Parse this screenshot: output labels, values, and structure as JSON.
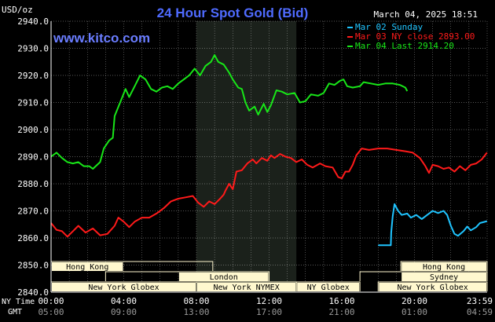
{
  "title": "24 Hour Spot Gold (Bid)",
  "datetime": "March 04, 2025 18:51",
  "unit": "USD/oz",
  "source": "www.kitco.com",
  "time_row_labels": {
    "ny": "NY Time",
    "gmt": "GMT"
  },
  "colors": {
    "background": "#000000",
    "title": "#4f6bff",
    "source": "#6a7dff",
    "axis_text": "#ffffff",
    "grid": "#d9d9d9",
    "session_shade": "#1b211b",
    "series_sunday": "#1fc4ff",
    "series_close": "#ff1a1a",
    "series_last": "#18e618",
    "market_fill": "#fff8cf",
    "market_text": "#000000"
  },
  "chart_data": {
    "type": "line",
    "title": "24 Hour Spot Gold (Bid)",
    "xlabel": "",
    "ylabel": "USD/oz",
    "ylim": [
      2840,
      2940
    ],
    "yticks": [
      "2840.0",
      "2850.0",
      "2860.0",
      "2870.0",
      "2880.0",
      "2890.0",
      "2900.0",
      "2910.0",
      "2920.0",
      "2930.0",
      "2940.0"
    ],
    "xlim_hours": [
      0,
      24
    ],
    "xticks": [
      {
        "ny": "00:00",
        "gmt": "05:00"
      },
      {
        "ny": "04:00",
        "gmt": "09:00"
      },
      {
        "ny": "08:00",
        "gmt": "13:00"
      },
      {
        "ny": "12:00",
        "gmt": "17:00"
      },
      {
        "ny": "16:00",
        "gmt": "21:00"
      },
      {
        "ny": "20:00",
        "gmt": "01:00"
      },
      {
        "ny": "23:59",
        "gmt": "04:59"
      }
    ],
    "grid": true,
    "legend_position": "top-right",
    "shaded_session_hours": [
      8.0,
      13.5
    ],
    "series": [
      {
        "name": "Mar 02 Sunday",
        "color": "#1fc4ff",
        "points": [
          [
            18.0,
            2857.3
          ],
          [
            18.7,
            2857.3
          ],
          [
            18.72,
            2862.0
          ],
          [
            18.8,
            2868.0
          ],
          [
            18.9,
            2872.5
          ],
          [
            19.1,
            2870.0
          ],
          [
            19.3,
            2868.5
          ],
          [
            19.6,
            2869.0
          ],
          [
            19.8,
            2867.5
          ],
          [
            20.1,
            2868.5
          ],
          [
            20.4,
            2867.0
          ],
          [
            20.7,
            2868.5
          ],
          [
            21.0,
            2870.0
          ],
          [
            21.3,
            2869.2
          ],
          [
            21.6,
            2870.0
          ],
          [
            21.8,
            2868.5
          ],
          [
            22.0,
            2864.5
          ],
          [
            22.2,
            2861.5
          ],
          [
            22.4,
            2860.8
          ],
          [
            22.7,
            2862.5
          ],
          [
            22.9,
            2864.2
          ],
          [
            23.1,
            2862.8
          ],
          [
            23.4,
            2864.0
          ],
          [
            23.6,
            2865.5
          ],
          [
            23.99,
            2866.2
          ]
        ]
      },
      {
        "name": "Mar 03 NY close 2893.00",
        "color": "#ff1a1a",
        "points": [
          [
            0.0,
            2865.5
          ],
          [
            0.3,
            2863.0
          ],
          [
            0.6,
            2862.5
          ],
          [
            0.9,
            2860.5
          ],
          [
            1.2,
            2862.5
          ],
          [
            1.5,
            2864.5
          ],
          [
            1.9,
            2862.0
          ],
          [
            2.3,
            2863.5
          ],
          [
            2.7,
            2861.0
          ],
          [
            3.1,
            2861.5
          ],
          [
            3.5,
            2864.5
          ],
          [
            3.7,
            2867.5
          ],
          [
            4.0,
            2866.0
          ],
          [
            4.3,
            2864.0
          ],
          [
            4.6,
            2866.0
          ],
          [
            5.0,
            2867.5
          ],
          [
            5.4,
            2867.5
          ],
          [
            5.8,
            2869.0
          ],
          [
            6.2,
            2871.0
          ],
          [
            6.6,
            2873.5
          ],
          [
            7.0,
            2874.5
          ],
          [
            7.4,
            2875.0
          ],
          [
            7.8,
            2875.5
          ],
          [
            8.1,
            2873.0
          ],
          [
            8.4,
            2871.5
          ],
          [
            8.7,
            2873.5
          ],
          [
            9.0,
            2872.5
          ],
          [
            9.3,
            2874.5
          ],
          [
            9.5,
            2876.0
          ],
          [
            9.6,
            2877.5
          ],
          [
            9.8,
            2880.0
          ],
          [
            10.0,
            2878.0
          ],
          [
            10.2,
            2884.5
          ],
          [
            10.5,
            2885.0
          ],
          [
            10.8,
            2887.5
          ],
          [
            11.1,
            2889.0
          ],
          [
            11.3,
            2887.5
          ],
          [
            11.6,
            2889.5
          ],
          [
            11.9,
            2888.5
          ],
          [
            12.1,
            2890.5
          ],
          [
            12.3,
            2889.5
          ],
          [
            12.6,
            2891.0
          ],
          [
            12.9,
            2890.0
          ],
          [
            13.2,
            2889.5
          ],
          [
            13.5,
            2888.0
          ],
          [
            13.8,
            2889.0
          ],
          [
            14.1,
            2887.0
          ],
          [
            14.4,
            2886.0
          ],
          [
            14.8,
            2887.5
          ],
          [
            15.1,
            2886.5
          ],
          [
            15.5,
            2886.0
          ],
          [
            15.8,
            2882.5
          ],
          [
            16.0,
            2882.0
          ],
          [
            16.2,
            2884.5
          ],
          [
            16.4,
            2884.5
          ],
          [
            16.6,
            2887.0
          ],
          [
            16.8,
            2890.5
          ],
          [
            17.1,
            2893.0
          ],
          [
            17.5,
            2892.5
          ],
          [
            18.0,
            2893.0
          ],
          [
            18.5,
            2893.0
          ],
          [
            19.0,
            2892.5
          ],
          [
            19.5,
            2892.0
          ],
          [
            19.9,
            2891.5
          ],
          [
            20.3,
            2889.5
          ],
          [
            20.6,
            2886.5
          ],
          [
            20.8,
            2884.0
          ],
          [
            21.0,
            2887.0
          ],
          [
            21.3,
            2886.5
          ],
          [
            21.6,
            2885.5
          ],
          [
            21.9,
            2886.0
          ],
          [
            22.2,
            2884.5
          ],
          [
            22.5,
            2886.5
          ],
          [
            22.8,
            2885.0
          ],
          [
            23.1,
            2887.0
          ],
          [
            23.4,
            2887.5
          ],
          [
            23.7,
            2889.0
          ],
          [
            23.99,
            2891.5
          ]
        ]
      },
      {
        "name": "Mar 04 Last 2914.20",
        "color": "#18e618",
        "points": [
          [
            0.0,
            2890.0
          ],
          [
            0.3,
            2891.5
          ],
          [
            0.6,
            2889.5
          ],
          [
            0.9,
            2888.0
          ],
          [
            1.2,
            2887.5
          ],
          [
            1.5,
            2888.0
          ],
          [
            1.8,
            2886.5
          ],
          [
            2.1,
            2886.5
          ],
          [
            2.3,
            2885.5
          ],
          [
            2.7,
            2888.0
          ],
          [
            2.9,
            2893.0
          ],
          [
            3.2,
            2896.0
          ],
          [
            3.4,
            2897.0
          ],
          [
            3.5,
            2905.0
          ],
          [
            3.8,
            2910.0
          ],
          [
            4.1,
            2915.0
          ],
          [
            4.3,
            2912.0
          ],
          [
            4.6,
            2916.0
          ],
          [
            4.9,
            2920.0
          ],
          [
            5.2,
            2918.5
          ],
          [
            5.5,
            2915.0
          ],
          [
            5.8,
            2914.0
          ],
          [
            6.1,
            2915.5
          ],
          [
            6.4,
            2916.0
          ],
          [
            6.7,
            2915.0
          ],
          [
            7.0,
            2917.0
          ],
          [
            7.3,
            2918.5
          ],
          [
            7.6,
            2920.0
          ],
          [
            7.9,
            2922.5
          ],
          [
            8.2,
            2920.0
          ],
          [
            8.5,
            2923.5
          ],
          [
            8.8,
            2925.0
          ],
          [
            9.0,
            2927.5
          ],
          [
            9.2,
            2925.0
          ],
          [
            9.5,
            2924.0
          ],
          [
            9.8,
            2921.0
          ],
          [
            10.0,
            2918.5
          ],
          [
            10.3,
            2915.5
          ],
          [
            10.5,
            2915.0
          ],
          [
            10.7,
            2910.0
          ],
          [
            10.9,
            2907.0
          ],
          [
            11.2,
            2908.5
          ],
          [
            11.4,
            2905.5
          ],
          [
            11.7,
            2909.5
          ],
          [
            11.9,
            2906.5
          ],
          [
            12.1,
            2909.0
          ],
          [
            12.4,
            2914.5
          ],
          [
            12.7,
            2914.0
          ],
          [
            13.0,
            2913.0
          ],
          [
            13.4,
            2913.5
          ],
          [
            13.7,
            2910.0
          ],
          [
            14.0,
            2910.5
          ],
          [
            14.3,
            2913.0
          ],
          [
            14.7,
            2912.5
          ],
          [
            15.0,
            2913.5
          ],
          [
            15.3,
            2917.0
          ],
          [
            15.6,
            2916.5
          ],
          [
            15.9,
            2918.0
          ],
          [
            16.1,
            2918.5
          ],
          [
            16.3,
            2916.0
          ],
          [
            16.6,
            2915.5
          ],
          [
            17.0,
            2916.0
          ],
          [
            17.2,
            2917.5
          ],
          [
            17.6,
            2917.0
          ],
          [
            18.0,
            2916.5
          ],
          [
            18.4,
            2917.0
          ],
          [
            18.8,
            2917.0
          ],
          [
            19.2,
            2916.5
          ],
          [
            19.5,
            2915.5
          ],
          [
            19.6,
            2914.2
          ]
        ]
      }
    ]
  },
  "markets": [
    {
      "name": "Hong Kong",
      "start": 0.0,
      "end": 8.9,
      "row": 0,
      "label_start": 0.0,
      "label_end": 4.0
    },
    {
      "name": "Hong Kong",
      "start": 19.25,
      "end": 24.0,
      "row": 0,
      "label_start": 19.25,
      "label_end": 24.0
    },
    {
      "name": "London",
      "start": 3.0,
      "end": 12.0,
      "row": 1,
      "label_start": 7.0,
      "label_end": 12.0
    },
    {
      "name": "Sydney",
      "start": 17.0,
      "end": 24.0,
      "row": 1,
      "label_start": 19.25,
      "label_end": 24.0
    },
    {
      "name": "New York Globex",
      "start": 0.0,
      "end": 8.0,
      "row": 2,
      "label_start": 0.0,
      "label_end": 8.0
    },
    {
      "name": "New York NYMEX",
      "start": 8.0,
      "end": 13.5,
      "row": 2,
      "label_start": 8.0,
      "label_end": 13.5
    },
    {
      "name": "NY Globex",
      "start": 13.5,
      "end": 17.0,
      "row": 2,
      "label_start": 13.5,
      "label_end": 17.0
    },
    {
      "name": "New York Globex",
      "start": 18.0,
      "end": 24.0,
      "row": 2,
      "label_start": 18.0,
      "label_end": 24.0
    }
  ]
}
